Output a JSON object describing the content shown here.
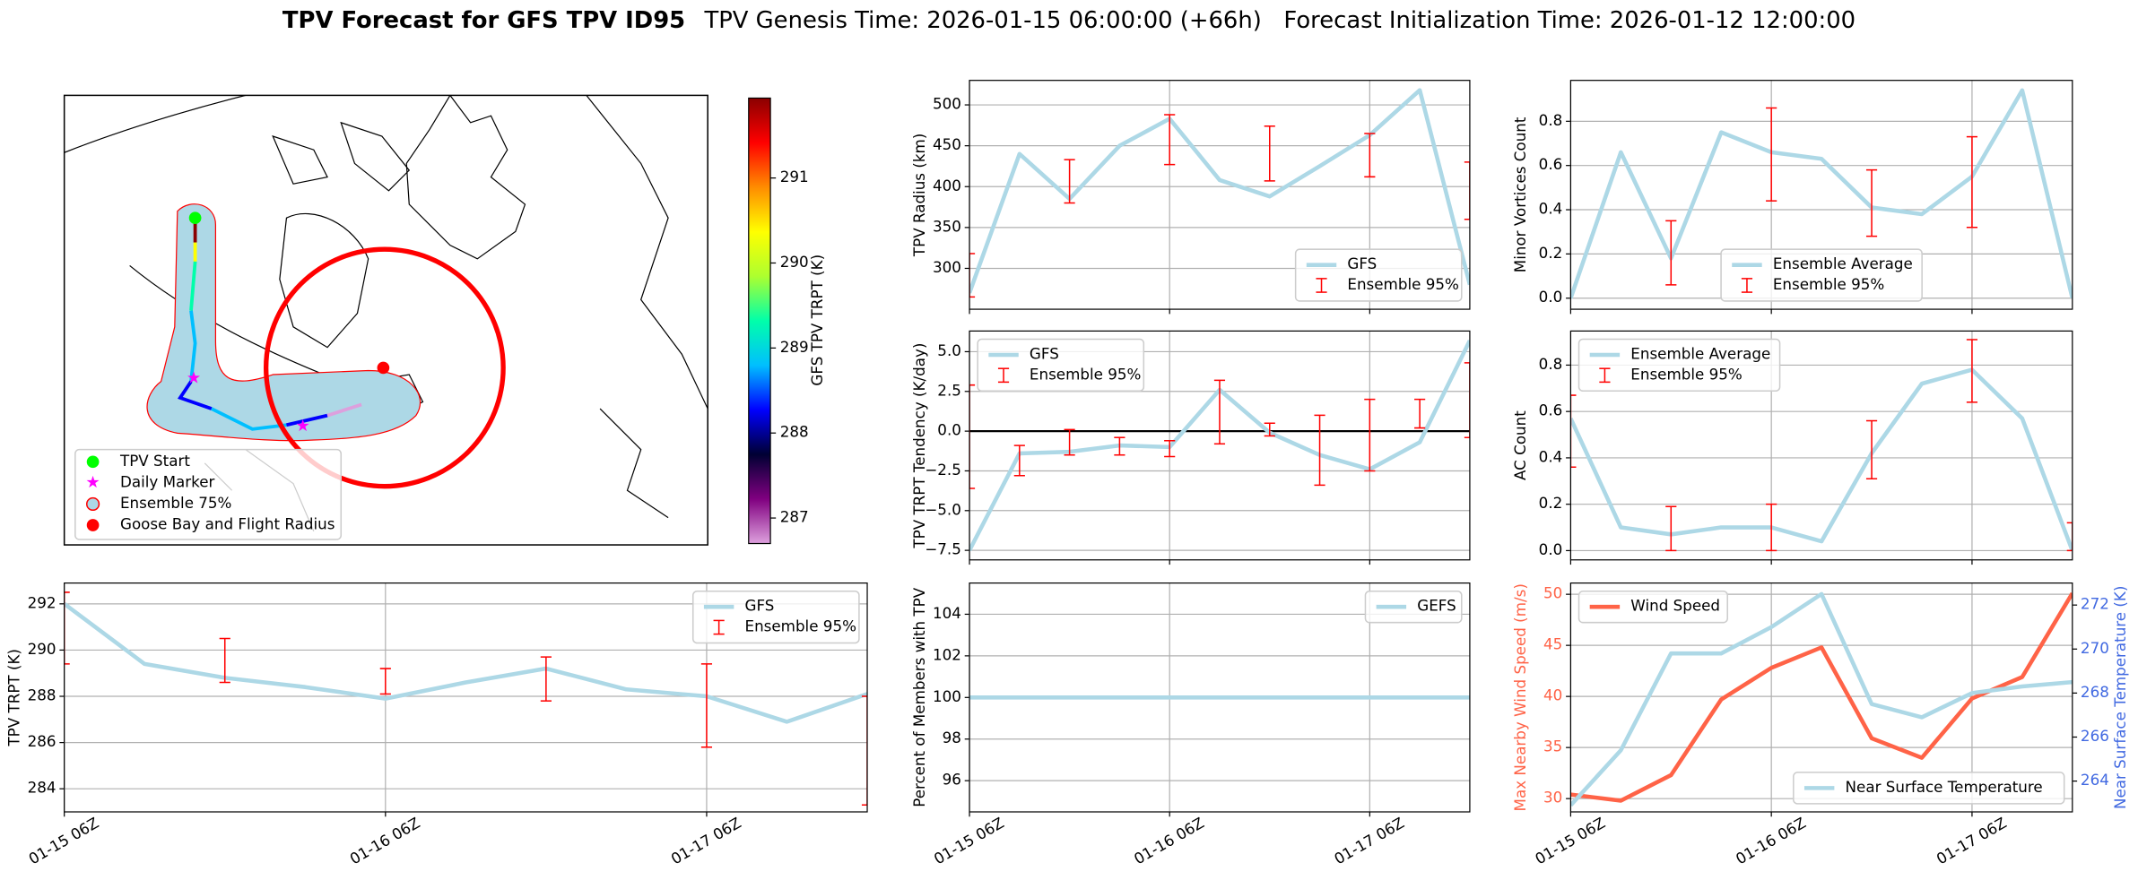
{
  "figure_title": "TPV Forecast for GFS TPV ID95",
  "figure_subtitle": "TPV Genesis Time: 2026-01-15 06:00:00 (+66h)   Forecast Initialization Time: 2026-01-12 12:00:00",
  "chart_data": [
    {
      "type": "map",
      "colorbar_label": "GFS TPV TRPT (K)",
      "clim": [
        286.7,
        291.94
      ],
      "cticks": [
        287,
        288,
        289,
        290,
        291
      ],
      "colormap": [
        "#dda0dd",
        "#800080",
        "#000033",
        "#0000ff",
        "#00bfff",
        "#00ffaa",
        "#adff2f",
        "#ffff00",
        "#ff8c00",
        "#ff0000",
        "#8b0000"
      ],
      "legend": [
        {
          "name": "TPV Start",
          "color": "#00ff00",
          "marker": "circle"
        },
        {
          "name": "Daily Marker",
          "color": "#ff00ff",
          "marker": "star"
        },
        {
          "name": "Ensemble 75%",
          "color": "#add8e6",
          "edge": "#ff0000",
          "marker": "circle"
        },
        {
          "name": "Goose Bay and Flight Radius",
          "color": "#ff0000",
          "marker": "circle"
        }
      ]
    },
    {
      "type": "line",
      "ylabel": "TPV TRPT (K)",
      "x": [
        "01-15 06Z",
        "01-15 12Z",
        "01-15 18Z",
        "01-16 00Z",
        "01-16 06Z",
        "01-16 12Z",
        "01-16 18Z",
        "01-17 00Z",
        "01-17 06Z",
        "01-17 12Z",
        "01-17 18Z"
      ],
      "xlim": [
        "01-15 06Z",
        "01-17 18Z"
      ],
      "xticks": [
        "01-15 06Z",
        "01-16 06Z",
        "01-17 06Z"
      ],
      "show_xtick_labels": true,
      "ylim": [
        283,
        292.9
      ],
      "yticks": [
        284,
        286,
        288,
        290,
        292
      ],
      "grid": true,
      "legend": "upper right",
      "series": [
        {
          "name": "GFS",
          "color": "#add8e6",
          "values": [
            292.0,
            289.4,
            288.8,
            288.4,
            287.9,
            288.6,
            289.2,
            288.3,
            288.0,
            286.9,
            288.1
          ]
        }
      ],
      "ensemble": {
        "name": "Ensemble 95%",
        "color": "#ff0000",
        "x": [
          "01-15 06Z",
          "01-15 18Z",
          "01-16 06Z",
          "01-16 18Z",
          "01-17 06Z",
          "01-17 18Z"
        ],
        "low": [
          289.4,
          288.6,
          288.1,
          287.8,
          285.8,
          283.3
        ],
        "high": [
          292.5,
          290.5,
          289.2,
          289.7,
          289.4,
          288.0
        ]
      }
    },
    {
      "type": "line",
      "ylabel": "TPV Radius (km)",
      "x": [
        "01-15 06Z",
        "01-15 12Z",
        "01-15 18Z",
        "01-16 00Z",
        "01-16 06Z",
        "01-16 12Z",
        "01-16 18Z",
        "01-17 00Z",
        "01-17 06Z",
        "01-17 12Z",
        "01-17 18Z"
      ],
      "xlim": [
        "01-15 06Z",
        "01-17 18Z"
      ],
      "xticks": [
        "01-15 06Z",
        "01-16 06Z",
        "01-17 06Z"
      ],
      "show_xtick_labels": false,
      "ylim": [
        250,
        530
      ],
      "yticks": [
        300,
        350,
        400,
        450,
        500
      ],
      "grid": true,
      "legend": "lower right",
      "series": [
        {
          "name": "GFS",
          "color": "#add8e6",
          "values": [
            270,
            440,
            385,
            450,
            483,
            408,
            388,
            425,
            463,
            518,
            280
          ]
        }
      ],
      "ensemble": {
        "name": "Ensemble 95%",
        "color": "#ff0000",
        "x": [
          "01-15 06Z",
          "01-15 18Z",
          "01-16 06Z",
          "01-16 18Z",
          "01-17 06Z",
          "01-17 18Z"
        ],
        "low": [
          265,
          380,
          427,
          407,
          412,
          360
        ],
        "high": [
          318,
          433,
          488,
          474,
          465,
          430
        ]
      }
    },
    {
      "type": "line",
      "ylabel": "TPV TRPT Tendency (K/day)",
      "x": [
        "01-15 06Z",
        "01-15 12Z",
        "01-15 18Z",
        "01-16 00Z",
        "01-16 06Z",
        "01-16 12Z",
        "01-16 18Z",
        "01-17 00Z",
        "01-17 06Z",
        "01-17 12Z",
        "01-17 18Z"
      ],
      "xlim": [
        "01-15 06Z",
        "01-17 18Z"
      ],
      "xticks": [
        "01-15 06Z",
        "01-16 06Z",
        "01-17 06Z"
      ],
      "show_xtick_labels": false,
      "ylim": [
        -8.1,
        6.3
      ],
      "yticks": [
        {
          "value": -7.5,
          "label": "−7.5"
        },
        {
          "value": -5,
          "label": "−5.0"
        },
        {
          "value": -2.5,
          "label": "−2.5"
        },
        {
          "value": 0,
          "label": "0.0"
        },
        2.5,
        {
          "value": 5,
          "label": "5.0"
        }
      ],
      "grid": true,
      "legend": "upper left",
      "hline": 0,
      "series": [
        {
          "name": "GFS",
          "color": "#add8e6",
          "values": [
            -7.5,
            -1.4,
            -1.3,
            -0.9,
            -1.0,
            2.6,
            -0.1,
            -1.5,
            -2.4,
            -0.7,
            5.7
          ]
        }
      ],
      "ensemble": {
        "name": "Ensemble 95%",
        "color": "#ff0000",
        "x": [
          "01-15 06Z",
          "01-15 12Z",
          "01-15 18Z",
          "01-16 00Z",
          "01-16 06Z",
          "01-16 12Z",
          "01-16 18Z",
          "01-17 00Z",
          "01-17 06Z",
          "01-17 12Z",
          "01-17 18Z"
        ],
        "low": [
          -3.6,
          -2.8,
          -1.5,
          -1.5,
          -1.6,
          -0.8,
          -0.3,
          -3.4,
          -2.5,
          0.2,
          -0.4
        ],
        "high": [
          2.9,
          -0.9,
          0.1,
          -0.4,
          -0.6,
          3.2,
          0.5,
          1.0,
          2.0,
          2.0,
          4.3
        ]
      }
    },
    {
      "type": "line",
      "ylabel": "Percent of Members with TPV",
      "x": [
        "01-15 06Z",
        "01-15 12Z",
        "01-15 18Z",
        "01-16 00Z",
        "01-16 06Z",
        "01-16 12Z",
        "01-16 18Z",
        "01-17 00Z",
        "01-17 06Z",
        "01-17 12Z",
        "01-17 18Z"
      ],
      "xlim": [
        "01-15 06Z",
        "01-17 18Z"
      ],
      "xticks": [
        "01-15 06Z",
        "01-16 06Z",
        "01-17 06Z"
      ],
      "show_xtick_labels": true,
      "ylim": [
        94.5,
        105.5
      ],
      "yticks": [
        96,
        98,
        100,
        102,
        104
      ],
      "grid": true,
      "legend": "upper right",
      "series": [
        {
          "name": "GEFS",
          "color": "#add8e6",
          "values": [
            100,
            100,
            100,
            100,
            100,
            100,
            100,
            100,
            100,
            100,
            100
          ]
        }
      ]
    },
    {
      "type": "line",
      "ylabel": "Minor Vortices Count",
      "x": [
        "01-15 06Z",
        "01-15 12Z",
        "01-15 18Z",
        "01-16 00Z",
        "01-16 06Z",
        "01-16 12Z",
        "01-16 18Z",
        "01-17 00Z",
        "01-17 06Z",
        "01-17 12Z",
        "01-17 18Z"
      ],
      "xlim": [
        "01-15 06Z",
        "01-17 18Z"
      ],
      "xticks": [
        "01-15 06Z",
        "01-16 06Z",
        "01-17 06Z"
      ],
      "show_xtick_labels": false,
      "ylim": [
        -0.05,
        0.985
      ],
      "yticks": [
        {
          "value": 0,
          "label": "0.0"
        },
        0.2,
        0.4,
        0.6,
        0.8
      ],
      "grid": true,
      "legend": "lower center",
      "series": [
        {
          "name": "Ensemble Average",
          "color": "#add8e6",
          "values": [
            0,
            0.66,
            0.18,
            0.75,
            0.66,
            0.63,
            0.41,
            0.38,
            0.55,
            0.94,
            0
          ]
        }
      ],
      "ensemble": {
        "name": "Ensemble 95%",
        "color": "#ff0000",
        "x": [
          "01-15 18Z",
          "01-16 06Z",
          "01-16 18Z",
          "01-17 06Z"
        ],
        "low": [
          0.06,
          0.44,
          0.28,
          0.32
        ],
        "high": [
          0.35,
          0.86,
          0.58,
          0.73
        ]
      }
    },
    {
      "type": "line",
      "ylabel": "AC Count",
      "x": [
        "01-15 06Z",
        "01-15 12Z",
        "01-15 18Z",
        "01-16 00Z",
        "01-16 06Z",
        "01-16 12Z",
        "01-16 18Z",
        "01-17 00Z",
        "01-17 06Z",
        "01-17 12Z",
        "01-17 18Z"
      ],
      "xlim": [
        "01-15 06Z",
        "01-17 18Z"
      ],
      "xticks": [
        "01-15 06Z",
        "01-16 06Z",
        "01-17 06Z"
      ],
      "show_xtick_labels": false,
      "ylim": [
        -0.04,
        0.947
      ],
      "yticks": [
        {
          "value": 0,
          "label": "0.0"
        },
        0.2,
        0.4,
        0.6,
        0.8
      ],
      "grid": true,
      "legend": "upper left",
      "series": [
        {
          "name": "Ensemble Average",
          "color": "#add8e6",
          "values": [
            0.57,
            0.1,
            0.07,
            0.1,
            0.1,
            0.04,
            0.42,
            0.72,
            0.78,
            0.57,
            0
          ]
        }
      ],
      "ensemble": {
        "name": "Ensemble 95%",
        "color": "#ff0000",
        "x": [
          "01-15 06Z",
          "01-15 18Z",
          "01-16 06Z",
          "01-16 18Z",
          "01-17 06Z",
          "01-17 18Z"
        ],
        "low": [
          0.36,
          0,
          0,
          0.31,
          0.64,
          0
        ],
        "high": [
          0.67,
          0.19,
          0.2,
          0.56,
          0.91,
          0.12
        ]
      }
    },
    {
      "type": "line",
      "ylabel": "Max Nearby Wind Speed (m/s)",
      "ylabel_color": "#ff6347",
      "y2label": "Near Surface Temperature (K)",
      "y2label_color": "#4169e1",
      "x": [
        "01-15 06Z",
        "01-15 12Z",
        "01-15 18Z",
        "01-16 00Z",
        "01-16 06Z",
        "01-16 12Z",
        "01-16 18Z",
        "01-17 00Z",
        "01-17 06Z",
        "01-17 12Z",
        "01-17 18Z"
      ],
      "xlim": [
        "01-15 06Z",
        "01-17 18Z"
      ],
      "xticks": [
        "01-15 06Z",
        "01-16 06Z",
        "01-17 06Z"
      ],
      "show_xtick_labels": true,
      "ylim": [
        28.7,
        51.1
      ],
      "yticks": [
        30,
        35,
        40,
        45,
        50
      ],
      "y2lim": [
        262.6,
        273.0
      ],
      "y2ticks": [
        264,
        266,
        268,
        270,
        272
      ],
      "grid": true,
      "series": [
        {
          "name": "Wind Speed",
          "color": "#ff6347",
          "legend": "upper left",
          "values": [
            30.4,
            29.8,
            32.3,
            39.7,
            42.8,
            44.8,
            35.9,
            34.0,
            39.8,
            41.9,
            50.1
          ]
        },
        {
          "name": "Near Surface Temperature",
          "color": "#add8e6",
          "axis": "y2",
          "legend": "lower right",
          "values": [
            262.9,
            265.4,
            269.8,
            269.8,
            271.0,
            272.5,
            267.5,
            266.9,
            268.0,
            268.3,
            268.5
          ]
        }
      ]
    }
  ]
}
